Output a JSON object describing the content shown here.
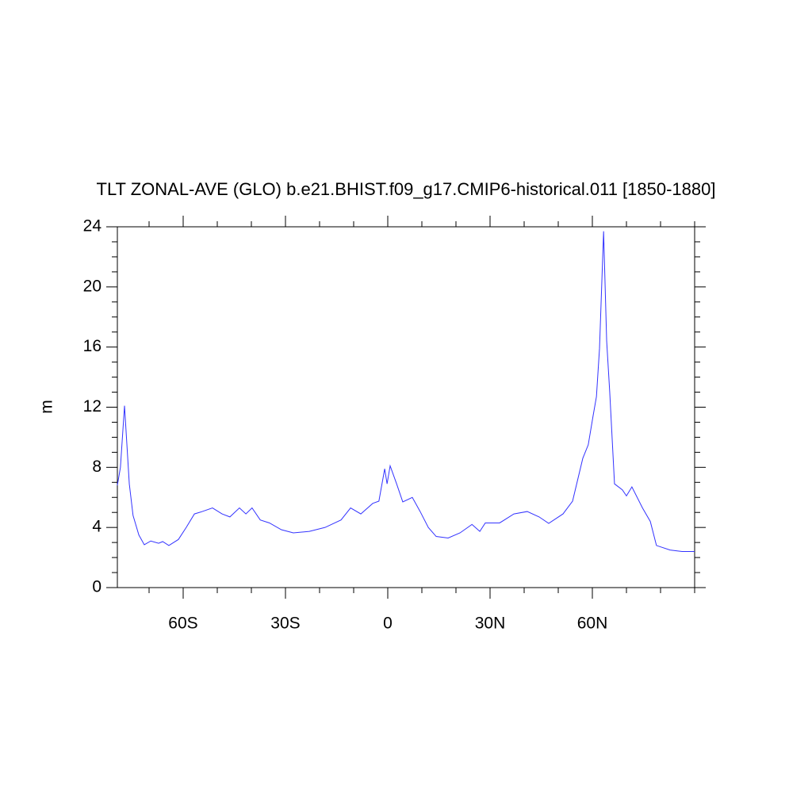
{
  "chart_data": {
    "type": "line",
    "title": "TLT ZONAL-AVE (GLO) b.e21.BHIST.f09_g17.CMIP6-historical.011 [1850-1880]",
    "ylabel": "m",
    "x": [
      -79.3,
      -78.4,
      -77.2,
      -76.5,
      -75.8,
      -74.7,
      -73,
      -71.4,
      -69.5,
      -67.2,
      -66,
      -64.2,
      -61.4,
      -59.1,
      -56.7,
      -54.4,
      -51.4,
      -48.6,
      -46.3,
      -43.5,
      -41.6,
      -39.8,
      -37.4,
      -34.7,
      -31.2,
      -27.7,
      -23,
      -18.4,
      -13.7,
      -10.9,
      -7.9,
      -4.4,
      -2.6,
      -0.9,
      -0.2,
      0.7,
      2.6,
      4.4,
      7.2,
      9.5,
      11.9,
      14.2,
      17.7,
      21.2,
      24.7,
      27,
      28.6,
      32.8,
      37,
      40.9,
      44.4,
      47.2,
      51.4,
      54.2,
      57.2,
      58.8,
      60.2,
      61.2,
      62.1,
      63.3,
      64.2,
      65.1,
      66.5,
      68.8,
      70,
      71.6,
      74.7,
      77,
      78.8,
      82.8,
      86.3,
      90
    ],
    "series": [
      {
        "name": "TLT",
        "color": "#3333ff",
        "values": [
          6.8,
          8.0,
          12.1,
          9.5,
          6.9,
          4.8,
          3.5,
          2.85,
          3.1,
          2.95,
          3.06,
          2.8,
          3.2,
          4.0,
          4.9,
          5.06,
          5.3,
          4.9,
          4.7,
          5.3,
          4.9,
          5.3,
          4.5,
          4.3,
          3.85,
          3.64,
          3.74,
          4.0,
          4.5,
          5.3,
          4.9,
          5.6,
          5.75,
          7.9,
          6.9,
          8.1,
          6.9,
          5.7,
          6.0,
          5.06,
          4.0,
          3.4,
          3.3,
          3.64,
          4.2,
          3.74,
          4.3,
          4.3,
          4.9,
          5.06,
          4.7,
          4.27,
          4.9,
          5.75,
          8.6,
          9.5,
          11.4,
          12.7,
          15.9,
          23.7,
          16.4,
          13.0,
          6.9,
          6.5,
          6.1,
          6.7,
          5.3,
          4.4,
          2.8,
          2.5,
          2.4,
          2.4
        ]
      }
    ],
    "xlim": [
      -79.3,
      90
    ],
    "xticks": [
      {
        "value": -60,
        "label": "60S"
      },
      {
        "value": -30,
        "label": "30S"
      },
      0,
      {
        "value": 30,
        "label": "30N"
      },
      {
        "value": 60,
        "label": "60N"
      }
    ],
    "xminor": [
      -70,
      -50,
      -40,
      -20,
      -10,
      10,
      20,
      40,
      50,
      70,
      80,
      90
    ],
    "ylim": [
      0,
      24
    ],
    "yticks": [
      0,
      4,
      8,
      12,
      16,
      20,
      24
    ],
    "yminor": [
      1,
      2,
      3,
      5,
      6,
      7,
      9,
      10,
      11,
      13,
      14,
      15,
      17,
      18,
      19,
      21,
      22,
      23
    ]
  }
}
